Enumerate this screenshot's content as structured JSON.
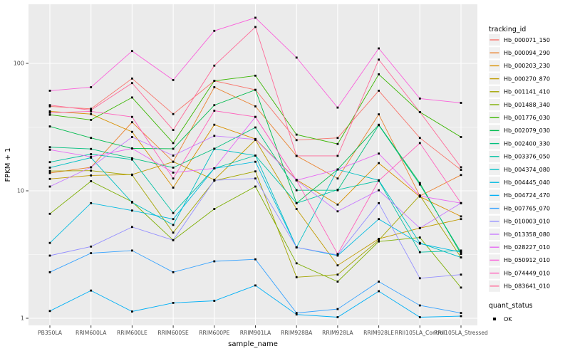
{
  "figure": {
    "xlabel": "sample_name",
    "ylabel": "FPKM + 1",
    "legend_title": "tracking_id",
    "legend2_title": "quant_status",
    "legend2_items": [
      {
        "label": "OK"
      }
    ],
    "panel_bg": "#EBEBEB",
    "grid_color": "#FFFFFF",
    "tick_label_color": "#4D4D4D",
    "point_color": "#000000",
    "legend_key_bg": "#F0F0F0"
  },
  "chart_data": {
    "type": "line",
    "yscale": "log10",
    "ylim": [
      1,
      280
    ],
    "y_ticks": [
      {
        "label": "1",
        "value": 1
      },
      {
        "label": "10",
        "value": 10
      },
      {
        "label": "100",
        "value": 100
      }
    ],
    "y_minor_ticks": [
      3.162,
      31.62
    ],
    "grid": true,
    "legend_position": "right",
    "title": "",
    "xlabel": "sample_name",
    "ylabel": "FPKM + 1",
    "x_categories": [
      "PB350LA",
      "RRIM600LA",
      "RRIM600LE",
      "RRIM600SE",
      "RRIM600PE",
      "RRIM901LA",
      "RRIM928BA",
      "RRIM928LA",
      "RRIM928LE",
      "RRII105LA_Control",
      "RRII105LA_Stressed"
    ],
    "series": [
      {
        "name": "Hb_000071_150",
        "color": "#F8766D",
        "values": [
          46,
          44,
          76,
          40,
          73,
          62,
          25,
          26,
          61,
          26,
          14.6
        ]
      },
      {
        "name": "Hb_000094_290",
        "color": "#EA8331",
        "values": [
          13.8,
          15.3,
          34.5,
          16.9,
          65,
          46,
          18.8,
          12.5,
          39.8,
          9.1,
          13.3
        ]
      },
      {
        "name": "Hb_000203_230",
        "color": "#D89000",
        "values": [
          42,
          40,
          29,
          10.6,
          33,
          25.5,
          12.2,
          7.8,
          16.5,
          9.0,
          6.3
        ]
      },
      {
        "name": "Hb_000270_870",
        "color": "#C09B00",
        "values": [
          12.4,
          13.2,
          13.4,
          16.9,
          12.2,
          25.1,
          7.2,
          2.6,
          4.2,
          5.1,
          6.0
        ]
      },
      {
        "name": "Hb_001141_410",
        "color": "#A3A500",
        "values": [
          14.3,
          14.4,
          13.3,
          4.7,
          12.0,
          14.2,
          2.1,
          2.2,
          4.1,
          9.2,
          3.0
        ]
      },
      {
        "name": "Hb_001488_340",
        "color": "#7CAE00",
        "values": [
          6.6,
          11.9,
          8.2,
          4.1,
          7.2,
          10.8,
          2.7,
          1.94,
          4.0,
          4.3,
          1.74
        ]
      },
      {
        "name": "Hb_001776_030",
        "color": "#39B600",
        "values": [
          39.5,
          36,
          54,
          23.7,
          73,
          80,
          27.6,
          23.3,
          82,
          41.5,
          26.4
        ]
      },
      {
        "name": "Hb_002079_030",
        "color": "#00BB4E",
        "values": [
          32,
          26,
          21.5,
          21.4,
          47,
          62,
          8.0,
          14.7,
          33,
          11.5,
          3.2
        ]
      },
      {
        "name": "Hb_002400_330",
        "color": "#00BF7D",
        "values": [
          22,
          21.3,
          18,
          15.2,
          21.4,
          31.4,
          10.1,
          10.1,
          32.7,
          11.2,
          3.3
        ]
      },
      {
        "name": "Hb_003376_050",
        "color": "#00C1A3",
        "values": [
          16.8,
          19.4,
          17.6,
          6.7,
          15,
          18.9,
          8.0,
          10.2,
          12.0,
          3.3,
          3.4
        ]
      },
      {
        "name": "Hb_004374_080",
        "color": "#00BFC4",
        "values": [
          15.2,
          18.2,
          8.1,
          5.4,
          21.4,
          18.9,
          3.6,
          14.7,
          12.1,
          3.9,
          3.0
        ]
      },
      {
        "name": "Hb_004445_040",
        "color": "#00BAE0",
        "values": [
          3.9,
          8.0,
          7.0,
          6.0,
          15,
          16.9,
          3.6,
          3.1,
          6.0,
          3.85,
          3.3
        ]
      },
      {
        "name": "Hb_004724_470",
        "color": "#00B0F6",
        "values": [
          1.14,
          1.65,
          1.13,
          1.32,
          1.37,
          1.81,
          1.07,
          1.02,
          1.63,
          1.02,
          1.04
        ]
      },
      {
        "name": "Hb_007765_070",
        "color": "#35A2FF",
        "values": [
          2.3,
          3.24,
          3.4,
          2.3,
          2.8,
          2.9,
          1.1,
          1.18,
          1.94,
          1.26,
          1.1
        ]
      },
      {
        "name": "Hb_010003_010",
        "color": "#9590FF",
        "values": [
          3.1,
          3.65,
          5.2,
          4.1,
          12.1,
          12.5,
          3.6,
          3.14,
          8.0,
          2.06,
          2.2
        ]
      },
      {
        "name": "Hb_013358_080",
        "color": "#C77CFF",
        "values": [
          10.8,
          15.3,
          26.4,
          18.9,
          27,
          25.3,
          12.1,
          6.9,
          10.1,
          5.1,
          8.0
        ]
      },
      {
        "name": "Hb_028227_010",
        "color": "#E76BF3",
        "values": [
          21,
          18.5,
          21.5,
          13.9,
          15,
          38,
          12.1,
          14.7,
          19.6,
          9.1,
          8.0
        ]
      },
      {
        "name": "Hb_050912_010",
        "color": "#FA62DB",
        "values": [
          61,
          65,
          125,
          74,
          180,
          228,
          111,
          45,
          131,
          53,
          49
        ]
      },
      {
        "name": "Hb_074449_010",
        "color": "#FF62BC",
        "values": [
          41,
          42,
          38,
          12.5,
          42.5,
          38,
          12.1,
          3.2,
          12.0,
          23.7,
          8.0
        ]
      },
      {
        "name": "Hb_083641_010",
        "color": "#FF6A98",
        "values": [
          47,
          43,
          70,
          30,
          96,
          193,
          18.8,
          18.8,
          107,
          41.5,
          15.3
        ]
      }
    ]
  }
}
